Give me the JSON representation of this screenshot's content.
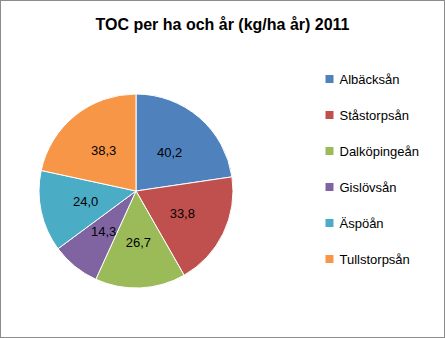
{
  "chart_data": {
    "type": "pie",
    "title": "TOC per ha och år (kg/ha år) 2011",
    "categories": [
      "Albäcksån",
      "Ståstorpsån",
      "Dalköpingeån",
      "Gislövsån",
      "Äspöån",
      "Tullstorpsån"
    ],
    "values": [
      40.2,
      33.8,
      26.7,
      14.3,
      24.0,
      38.3
    ],
    "value_labels": [
      "40,2",
      "33,8",
      "26,7",
      "14,3",
      "24,0",
      "38,3"
    ],
    "colors": [
      "#4F81BD",
      "#C0504D",
      "#9BBB59",
      "#8064A2",
      "#4BACC6",
      "#F79646"
    ],
    "data_labels": true,
    "legend": "right"
  }
}
